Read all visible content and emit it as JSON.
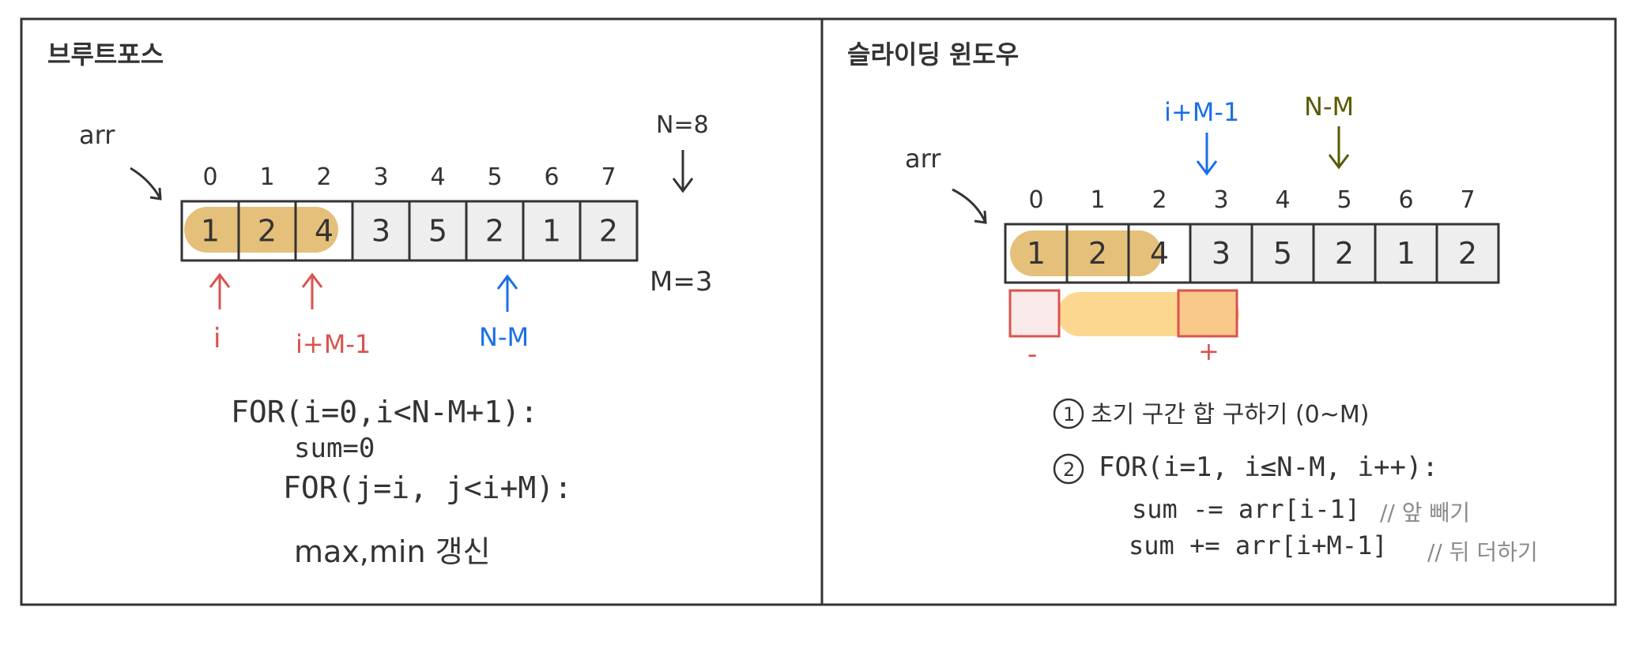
{
  "panels": {
    "left_title": "브루트포스",
    "right_title": "슬라이딩 윈도우"
  },
  "array": {
    "label": "arr",
    "indices": [
      "0",
      "1",
      "2",
      "3",
      "4",
      "5",
      "6",
      "7"
    ],
    "values": [
      "1",
      "2",
      "4",
      "3",
      "5",
      "2",
      "1",
      "2"
    ]
  },
  "left": {
    "n_label": "N=8",
    "m_label": "M=3",
    "arrow_i": "i",
    "arrow_i_m_1": "i+M-1",
    "arrow_n_m": "N-M",
    "code": {
      "line1": "FOR(i=0,i<N-M+1):",
      "line2": "sum=0",
      "line3": "FOR(j=i, j<i+M):",
      "line4": "max,min 갱신"
    }
  },
  "right": {
    "arrow_i_m_1": "i+M-1",
    "arrow_n_m": "N-M",
    "minus": "-",
    "plus": "+",
    "step1_num": "1",
    "step1": "초기 구간 합 구하기 (0~M)",
    "step2_num": "2",
    "step2": "FOR(i=1, i≤N-M, i++):",
    "line_sub": "sum -= arr[i-1]",
    "line_sub_comment": "// 앞 빼기",
    "line_add": "sum += arr[i+M-1]",
    "line_add_comment": "// 뒤 더하기"
  },
  "colors": {
    "highlight_window": "#e5c07b",
    "light_window": "#fbd78f",
    "red": "#d9534f",
    "blue": "#1a6fe8",
    "olive": "#5a5a00",
    "cell_bg": "#eeeeee",
    "border": "#333333"
  }
}
